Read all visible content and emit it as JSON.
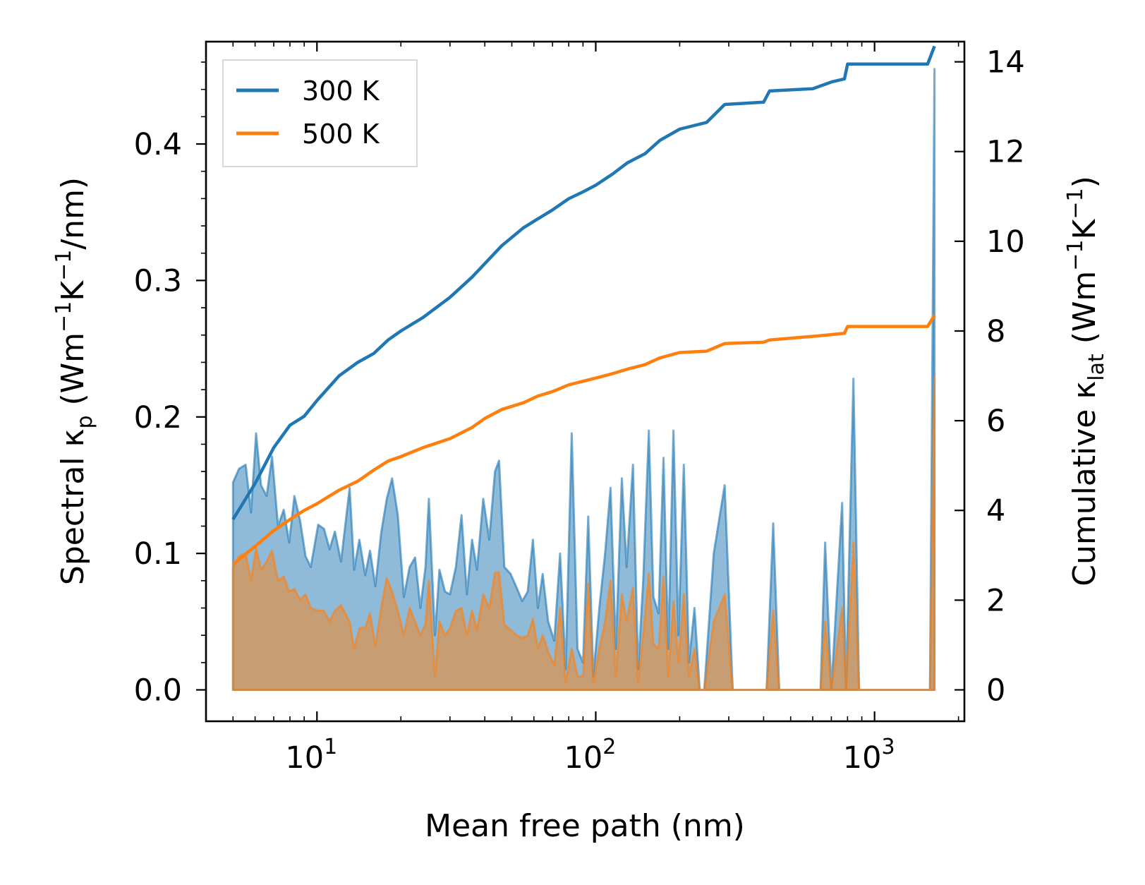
{
  "chart_data": {
    "type": "area",
    "xlabel": "Mean free path (nm)",
    "ylabel_left": {
      "base": "Spectral κ",
      "sub": "p",
      "open": " (Wm",
      "e1": "−1",
      "mid": "K",
      "e2": "−1",
      "close": "/nm)"
    },
    "ylabel_right": {
      "base": "Cumulative κ",
      "sub": "lat",
      "open": " (Wm",
      "e1": "−1",
      "mid": "K",
      "e2": "−1",
      "close": ")"
    },
    "xscale": "log",
    "xlim": [
      4,
      2100
    ],
    "ylim_left": [
      -0.023,
      0.475
    ],
    "ylim_right": [
      -0.7,
      14.45
    ],
    "x_ticks": [
      {
        "value": 10,
        "label": "10",
        "exp": "1"
      },
      {
        "value": 100,
        "label": "10",
        "exp": "2"
      },
      {
        "value": 1000,
        "label": "10",
        "exp": "3"
      }
    ],
    "y_ticks_left": [
      "0.0",
      "0.1",
      "0.2",
      "0.3",
      "0.4"
    ],
    "y_ticks_right": [
      "0",
      "2",
      "4",
      "6",
      "8",
      "10",
      "12",
      "14"
    ],
    "legend": {
      "position": "top-left"
    },
    "series": [
      {
        "name": "300 K",
        "color": "#1f77b4",
        "spectral": [
          [
            5.0,
            0.152
          ],
          [
            5.25,
            0.162
          ],
          [
            5.55,
            0.165
          ],
          [
            5.8,
            0.13
          ],
          [
            6.05,
            0.188
          ],
          [
            6.3,
            0.15
          ],
          [
            6.6,
            0.142
          ],
          [
            6.9,
            0.171
          ],
          [
            7.25,
            0.12
          ],
          [
            7.6,
            0.132
          ],
          [
            7.95,
            0.108
          ],
          [
            8.3,
            0.142
          ],
          [
            8.7,
            0.124
          ],
          [
            9.1,
            0.098
          ],
          [
            9.5,
            0.09
          ],
          [
            10.1,
            0.121
          ],
          [
            10.6,
            0.118
          ],
          [
            11.1,
            0.103
          ],
          [
            11.6,
            0.116
          ],
          [
            12.2,
            0.094
          ],
          [
            13.1,
            0.148
          ],
          [
            13.6,
            0.088
          ],
          [
            14.2,
            0.11
          ],
          [
            14.9,
            0.084
          ],
          [
            15.5,
            0.102
          ],
          [
            16.2,
            0.076
          ],
          [
            17.0,
            0.115
          ],
          [
            17.8,
            0.14
          ],
          [
            18.6,
            0.155
          ],
          [
            19.5,
            0.128
          ],
          [
            20.5,
            0.068
          ],
          [
            21.5,
            0.09
          ],
          [
            22.5,
            0.097
          ],
          [
            23.5,
            0.06
          ],
          [
            24.5,
            0.09
          ],
          [
            25.2,
            0.14
          ],
          [
            26.5,
            0.04
          ],
          [
            27.5,
            0.088
          ],
          [
            28.8,
            0.072
          ],
          [
            30.0,
            0.07
          ],
          [
            31.5,
            0.09
          ],
          [
            33.0,
            0.128
          ],
          [
            34.5,
            0.07
          ],
          [
            36.0,
            0.11
          ],
          [
            37.5,
            0.088
          ],
          [
            39.5,
            0.14
          ],
          [
            41.5,
            0.11
          ],
          [
            43.5,
            0.16
          ],
          [
            45.0,
            0.168
          ],
          [
            47.0,
            0.09
          ],
          [
            49.5,
            0.085
          ],
          [
            52.0,
            0.075
          ],
          [
            54.5,
            0.065
          ],
          [
            57.0,
            0.072
          ],
          [
            59.5,
            0.11
          ],
          [
            62.0,
            0.06
          ],
          [
            64.5,
            0.085
          ],
          [
            67.5,
            0.05
          ],
          [
            71.0,
            0.036
          ],
          [
            74.5,
            0.1
          ],
          [
            78.0,
            0.015
          ],
          [
            82.0,
            0.188
          ],
          [
            86.0,
            0.03
          ],
          [
            90.0,
            0.02
          ],
          [
            94.0,
            0.127
          ],
          [
            98.0,
            0.01
          ],
          [
            103.0,
            0.06
          ],
          [
            108.0,
            0.1
          ],
          [
            113.0,
            0.148
          ],
          [
            118.0,
            0.03
          ],
          [
            124.0,
            0.155
          ],
          [
            129.0,
            0.09
          ],
          [
            136.0,
            0.165
          ],
          [
            142.0,
            0.015
          ],
          [
            148.0,
            0.08
          ],
          [
            155.0,
            0.19
          ],
          [
            161.0,
            0.068
          ],
          [
            168.0,
            0.056
          ],
          [
            175.0,
            0.17
          ],
          [
            182.0,
            0.03
          ],
          [
            190.0,
            0.19
          ],
          [
            198.0,
            0.04
          ],
          [
            207.0,
            0.165
          ],
          [
            216.0,
            0.02
          ],
          [
            226.0,
            0.06
          ],
          [
            236.0,
            0.0
          ],
          [
            245.0,
            0.0
          ],
          [
            265.0,
            0.1
          ],
          [
            290.0,
            0.15
          ],
          [
            310.0,
            0.0
          ],
          [
            410.0,
            0.0
          ],
          [
            433.0,
            0.122
          ],
          [
            455.0,
            0.0
          ],
          [
            640.0,
            0.0
          ],
          [
            665.0,
            0.108
          ],
          [
            700.0,
            0.0
          ],
          [
            765.0,
            0.137
          ],
          [
            790.0,
            0.0
          ],
          [
            840.0,
            0.228
          ],
          [
            880.0,
            0.0
          ],
          [
            1580.0,
            0.0
          ],
          [
            1640.0,
            0.455
          ]
        ],
        "cumulative": [
          [
            5.0,
            3.8
          ],
          [
            6.0,
            4.6
          ],
          [
            7.0,
            5.4
          ],
          [
            8.0,
            5.9
          ],
          [
            9.0,
            6.1
          ],
          [
            10.0,
            6.45
          ],
          [
            12.0,
            7.0
          ],
          [
            14.0,
            7.3
          ],
          [
            16.0,
            7.5
          ],
          [
            18.0,
            7.8
          ],
          [
            20.0,
            8.0
          ],
          [
            24.0,
            8.3
          ],
          [
            30.0,
            8.75
          ],
          [
            36.0,
            9.2
          ],
          [
            40.0,
            9.5
          ],
          [
            46.0,
            9.9
          ],
          [
            55.0,
            10.3
          ],
          [
            62.0,
            10.5
          ],
          [
            70.0,
            10.7
          ],
          [
            80.0,
            10.95
          ],
          [
            90.0,
            11.1
          ],
          [
            100.0,
            11.25
          ],
          [
            115.0,
            11.5
          ],
          [
            130.0,
            11.75
          ],
          [
            150.0,
            11.95
          ],
          [
            170.0,
            12.25
          ],
          [
            200.0,
            12.5
          ],
          [
            250.0,
            12.65
          ],
          [
            290.0,
            13.05
          ],
          [
            400.0,
            13.1
          ],
          [
            420.0,
            13.35
          ],
          [
            600.0,
            13.4
          ],
          [
            700.0,
            13.55
          ],
          [
            780.0,
            13.62
          ],
          [
            800.0,
            13.95
          ],
          [
            1550.0,
            13.95
          ],
          [
            1640.0,
            14.35
          ]
        ]
      },
      {
        "name": "500 K",
        "color": "#ff7f0e",
        "spectral": [
          [
            5.0,
            0.09
          ],
          [
            5.25,
            0.098
          ],
          [
            5.55,
            0.1
          ],
          [
            5.8,
            0.08
          ],
          [
            6.05,
            0.104
          ],
          [
            6.3,
            0.088
          ],
          [
            6.6,
            0.094
          ],
          [
            6.9,
            0.102
          ],
          [
            7.25,
            0.08
          ],
          [
            7.6,
            0.083
          ],
          [
            7.95,
            0.072
          ],
          [
            8.3,
            0.074
          ],
          [
            8.7,
            0.066
          ],
          [
            9.1,
            0.07
          ],
          [
            9.5,
            0.06
          ],
          [
            10.1,
            0.058
          ],
          [
            10.6,
            0.058
          ],
          [
            11.1,
            0.05
          ],
          [
            11.6,
            0.058
          ],
          [
            12.2,
            0.062
          ],
          [
            13.1,
            0.05
          ],
          [
            13.6,
            0.03
          ],
          [
            14.2,
            0.045
          ],
          [
            14.9,
            0.046
          ],
          [
            15.5,
            0.056
          ],
          [
            16.2,
            0.032
          ],
          [
            17.0,
            0.06
          ],
          [
            17.8,
            0.082
          ],
          [
            18.6,
            0.072
          ],
          [
            19.5,
            0.058
          ],
          [
            20.5,
            0.04
          ],
          [
            21.5,
            0.06
          ],
          [
            22.5,
            0.05
          ],
          [
            23.5,
            0.04
          ],
          [
            24.5,
            0.048
          ],
          [
            25.2,
            0.08
          ],
          [
            26.5,
            0.01
          ],
          [
            27.5,
            0.05
          ],
          [
            28.8,
            0.04
          ],
          [
            30.0,
            0.045
          ],
          [
            31.5,
            0.058
          ],
          [
            33.0,
            0.06
          ],
          [
            34.5,
            0.04
          ],
          [
            36.0,
            0.058
          ],
          [
            37.5,
            0.044
          ],
          [
            39.5,
            0.07
          ],
          [
            41.5,
            0.06
          ],
          [
            43.5,
            0.086
          ],
          [
            45.0,
            0.086
          ],
          [
            47.0,
            0.048
          ],
          [
            49.5,
            0.044
          ],
          [
            52.0,
            0.04
          ],
          [
            54.5,
            0.038
          ],
          [
            57.0,
            0.04
          ],
          [
            59.5,
            0.052
          ],
          [
            62.0,
            0.03
          ],
          [
            64.5,
            0.04
          ],
          [
            67.5,
            0.028
          ],
          [
            71.0,
            0.018
          ],
          [
            74.5,
            0.06
          ],
          [
            78.0,
            0.005
          ],
          [
            82.0,
            0.03
          ],
          [
            86.0,
            0.01
          ],
          [
            90.0,
            0.01
          ],
          [
            94.0,
            0.078
          ],
          [
            98.0,
            0.005
          ],
          [
            103.0,
            0.03
          ],
          [
            108.0,
            0.05
          ],
          [
            113.0,
            0.08
          ],
          [
            118.0,
            0.01
          ],
          [
            124.0,
            0.07
          ],
          [
            129.0,
            0.05
          ],
          [
            136.0,
            0.075
          ],
          [
            142.0,
            0.005
          ],
          [
            148.0,
            0.04
          ],
          [
            155.0,
            0.085
          ],
          [
            161.0,
            0.034
          ],
          [
            168.0,
            0.03
          ],
          [
            175.0,
            0.083
          ],
          [
            182.0,
            0.01
          ],
          [
            190.0,
            0.065
          ],
          [
            198.0,
            0.02
          ],
          [
            207.0,
            0.07
          ],
          [
            216.0,
            0.01
          ],
          [
            226.0,
            0.03
          ],
          [
            236.0,
            0.0
          ],
          [
            245.0,
            0.0
          ],
          [
            265.0,
            0.05
          ],
          [
            290.0,
            0.07
          ],
          [
            310.0,
            0.0
          ],
          [
            410.0,
            0.0
          ],
          [
            433.0,
            0.058
          ],
          [
            455.0,
            0.0
          ],
          [
            640.0,
            0.0
          ],
          [
            665.0,
            0.05
          ],
          [
            700.0,
            0.0
          ],
          [
            765.0,
            0.06
          ],
          [
            790.0,
            0.0
          ],
          [
            840.0,
            0.108
          ],
          [
            880.0,
            0.0
          ],
          [
            1580.0,
            0.0
          ],
          [
            1640.0,
            0.23
          ]
        ],
        "cumulative": [
          [
            5.0,
            2.8
          ],
          [
            6.0,
            3.2
          ],
          [
            7.0,
            3.55
          ],
          [
            8.0,
            3.8
          ],
          [
            9.0,
            4.0
          ],
          [
            10.0,
            4.15
          ],
          [
            12.0,
            4.45
          ],
          [
            14.0,
            4.65
          ],
          [
            16.0,
            4.9
          ],
          [
            18.0,
            5.1
          ],
          [
            20.0,
            5.2
          ],
          [
            24.0,
            5.4
          ],
          [
            30.0,
            5.6
          ],
          [
            36.0,
            5.85
          ],
          [
            40.0,
            6.05
          ],
          [
            46.0,
            6.25
          ],
          [
            55.0,
            6.4
          ],
          [
            62.0,
            6.55
          ],
          [
            70.0,
            6.65
          ],
          [
            80.0,
            6.8
          ],
          [
            90.0,
            6.88
          ],
          [
            100.0,
            6.95
          ],
          [
            115.0,
            7.05
          ],
          [
            130.0,
            7.15
          ],
          [
            150.0,
            7.25
          ],
          [
            170.0,
            7.4
          ],
          [
            200.0,
            7.52
          ],
          [
            250.0,
            7.55
          ],
          [
            290.0,
            7.72
          ],
          [
            400.0,
            7.75
          ],
          [
            420.0,
            7.8
          ],
          [
            600.0,
            7.88
          ],
          [
            700.0,
            7.92
          ],
          [
            780.0,
            7.95
          ],
          [
            800.0,
            8.1
          ],
          [
            1550.0,
            8.1
          ],
          [
            1640.0,
            8.35
          ]
        ]
      }
    ]
  }
}
